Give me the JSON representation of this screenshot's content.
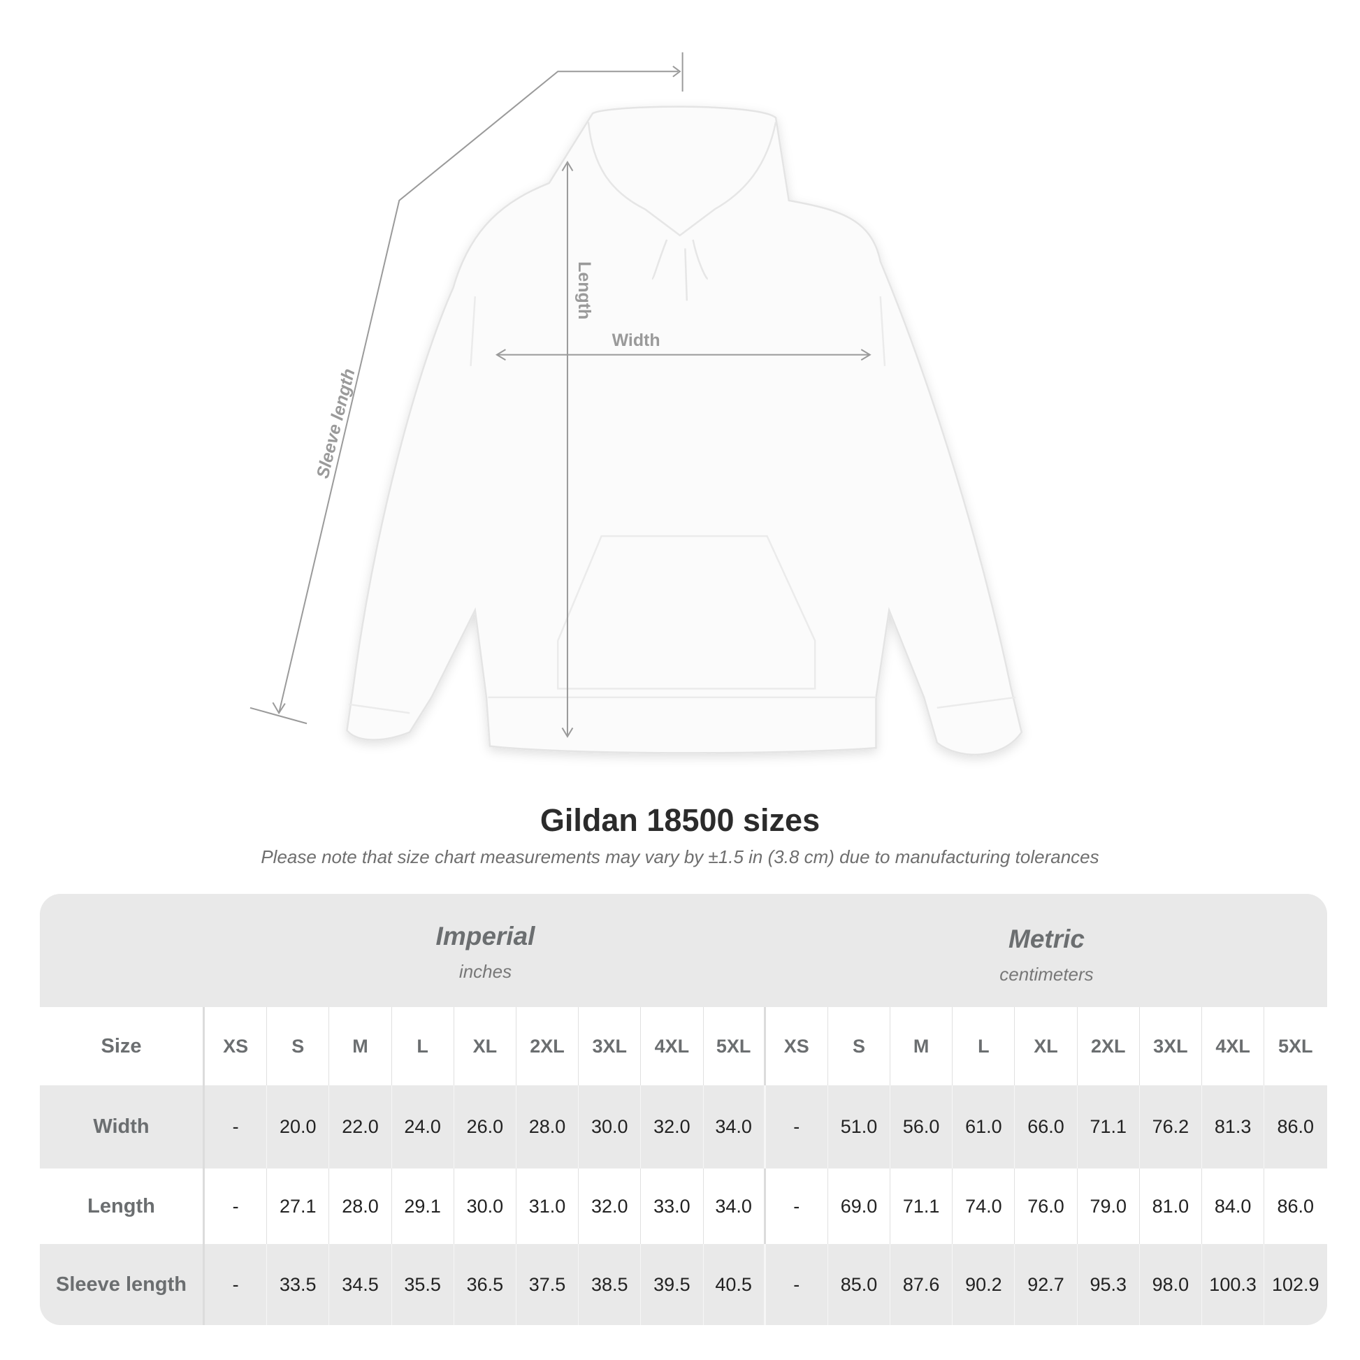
{
  "illustration": {
    "labels": {
      "length": "Length",
      "width": "Width",
      "sleeve": "Sleeve length"
    }
  },
  "title": "Gildan 18500 sizes",
  "note": "Please note that size chart measurements may vary by ±1.5 in (3.8 cm) due to manufacturing tolerances",
  "table": {
    "imperial": {
      "name": "Imperial",
      "unit": "inches"
    },
    "metric": {
      "name": "Metric",
      "unit": "centimeters"
    },
    "size_label": "Size",
    "sizes": [
      "XS",
      "S",
      "M",
      "L",
      "XL",
      "2XL",
      "3XL",
      "4XL",
      "5XL"
    ],
    "rows": [
      {
        "label": "Width",
        "imperial": [
          "-",
          "20.0",
          "22.0",
          "24.0",
          "26.0",
          "28.0",
          "30.0",
          "32.0",
          "34.0"
        ],
        "metric": [
          "-",
          "51.0",
          "56.0",
          "61.0",
          "66.0",
          "71.1",
          "76.2",
          "81.3",
          "86.0"
        ]
      },
      {
        "label": "Length",
        "imperial": [
          "-",
          "27.1",
          "28.0",
          "29.1",
          "30.0",
          "31.0",
          "32.0",
          "33.0",
          "34.0"
        ],
        "metric": [
          "-",
          "69.0",
          "71.1",
          "74.0",
          "76.0",
          "79.0",
          "81.0",
          "84.0",
          "86.0"
        ]
      },
      {
        "label": "Sleeve length",
        "imperial": [
          "-",
          "33.5",
          "34.5",
          "35.5",
          "36.5",
          "37.5",
          "38.5",
          "39.5",
          "40.5"
        ],
        "metric": [
          "-",
          "85.0",
          "87.6",
          "90.2",
          "92.7",
          "95.3",
          "98.0",
          "100.3",
          "102.9"
        ]
      }
    ]
  },
  "colors": {
    "band": "#e9e9e9",
    "label_text": "#6b6e70",
    "value_text": "#222222",
    "measure_line": "#9a9a9a"
  }
}
